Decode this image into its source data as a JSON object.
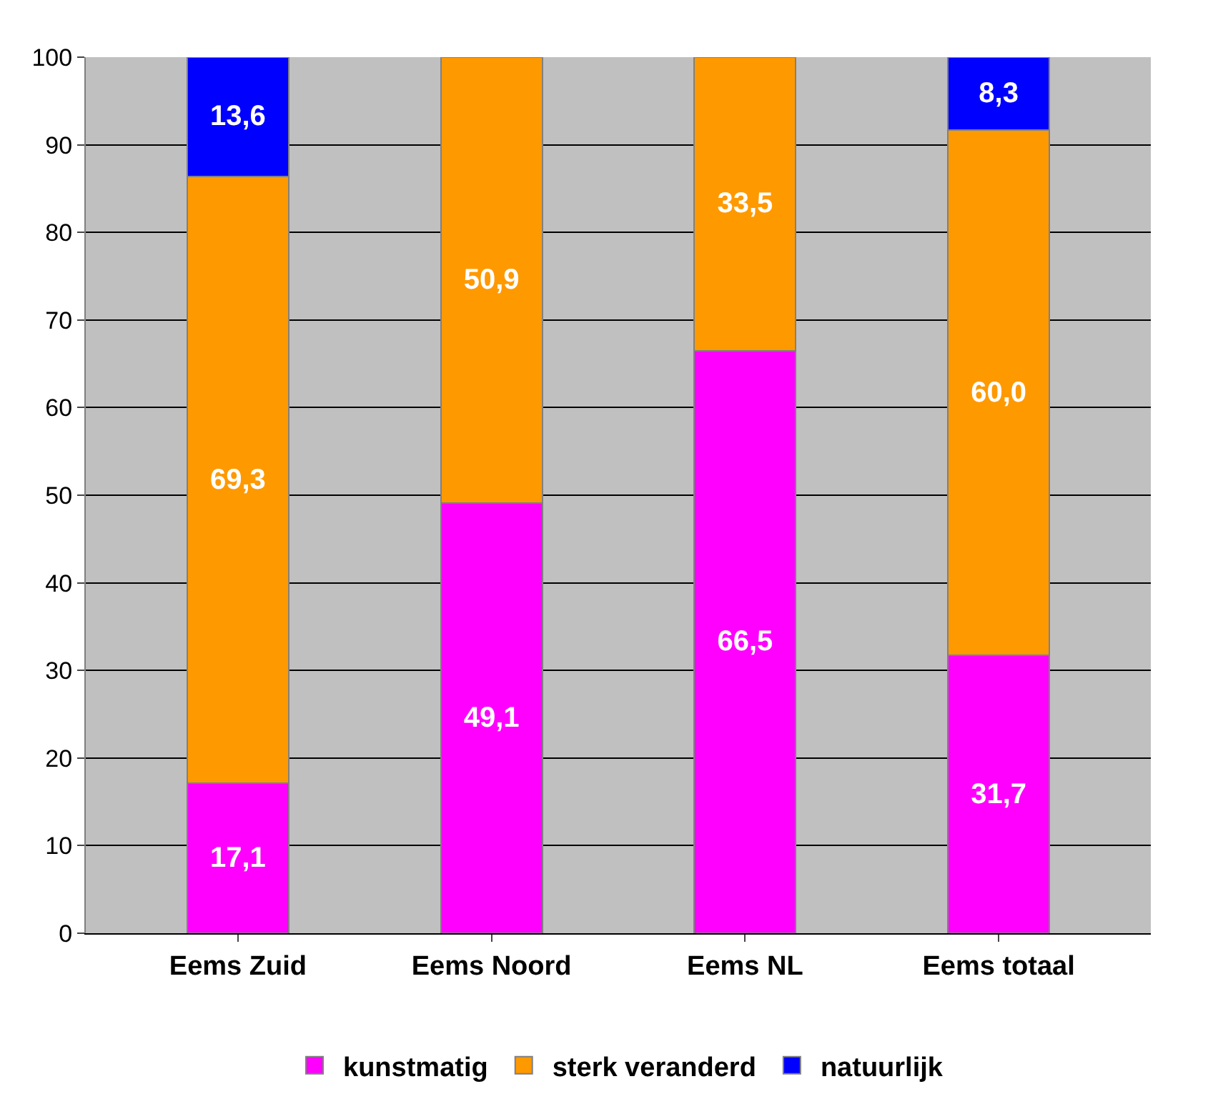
{
  "chart_data": {
    "type": "bar",
    "stacked": true,
    "categories": [
      "Eems Zuid",
      "Eems Noord",
      "Eems NL",
      "Eems totaal"
    ],
    "series": [
      {
        "name": "kunstmatig",
        "color": "#ff00ff",
        "values": [
          17.1,
          49.1,
          66.5,
          31.7
        ],
        "value_labels": [
          "17,1",
          "49,1",
          "66,5",
          "31,7"
        ]
      },
      {
        "name": "sterk veranderd",
        "color": "#ff9900",
        "values": [
          69.3,
          50.9,
          33.5,
          60.0
        ],
        "value_labels": [
          "69,3",
          "50,9",
          "33,5",
          "60,0"
        ]
      },
      {
        "name": "natuurlijk",
        "color": "#0000ff",
        "values": [
          13.6,
          null,
          null,
          8.3
        ],
        "value_labels": [
          "13,6",
          null,
          null,
          "8,3"
        ]
      }
    ],
    "ylim": [
      0,
      100
    ],
    "yticks": [
      0,
      10,
      20,
      30,
      40,
      50,
      60,
      70,
      80,
      90,
      100
    ],
    "grid": "y",
    "legend": "bottom"
  }
}
